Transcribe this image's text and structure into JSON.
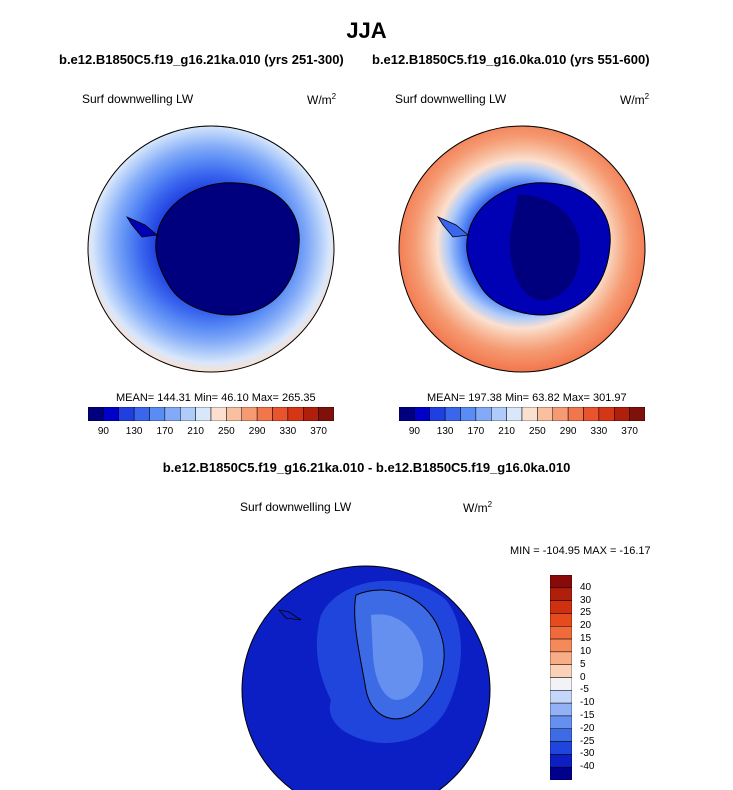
{
  "title": "JJA",
  "colorbar_top": [
    "#00007f",
    "#0000c8",
    "#1f3fe0",
    "#3a66ee",
    "#5a8cf5",
    "#82aaf8",
    "#aecbfa",
    "#d9e7fb",
    "#fbe0d0",
    "#f8bfa0",
    "#f59a72",
    "#f2764c",
    "#e9532d",
    "#d43616",
    "#b01f0b",
    "#80100a"
  ],
  "colorbar_bottom": [
    "#00007f",
    "#0000c8",
    "#1f3fe0",
    "#3a66ee",
    "#5a8cf5",
    "#82aaf8",
    "#aecbfa",
    "#d9e7fb",
    "#fbe0d0",
    "#f8bfa0",
    "#f59a72",
    "#f2764c",
    "#e9532d",
    "#d43616",
    "#b01f0b",
    "#80100a"
  ],
  "panels": [
    {
      "case": "b.e12.B1850C5.f19_g16.21ka.010 (yrs 251-300)",
      "variable": "Surf downwelling LW",
      "units": "W/m",
      "units_sup": "2",
      "stats": "MEAN= 144.31  Min=  46.10  Max= 265.35",
      "colorbar_ticks": [
        "90",
        "130",
        "170",
        "210",
        "250",
        "290",
        "330",
        "370"
      ]
    },
    {
      "case": "b.e12.B1850C5.f19_g16.0ka.010 (yrs 551-600)",
      "variable": "Surf downwelling LW",
      "units": "W/m",
      "units_sup": "2",
      "stats": "MEAN= 197.38  Min=  63.82  Max= 301.97",
      "colorbar_ticks": [
        "90",
        "130",
        "170",
        "210",
        "250",
        "290",
        "330",
        "370"
      ]
    }
  ],
  "difference": {
    "title": "b.e12.B1850C5.f19_g16.21ka.010 - b.e12.B1850C5.f19_g16.0ka.010",
    "variable": "Surf downwelling LW",
    "units": "W/m",
    "units_sup": "2",
    "stats": "MIN = -104.95 MAX = -16.17",
    "colorbar_labels": [
      "40",
      "30",
      "25",
      "20",
      "15",
      "10",
      "5",
      "0",
      "-5",
      "-10",
      "-15",
      "-20",
      "-25",
      "-30",
      "-40"
    ],
    "colorbar": [
      "#8a0a0a",
      "#b01f0b",
      "#d03010",
      "#e64b1e",
      "#f06a3c",
      "#f48a5a",
      "#f8ad86",
      "#fbd2b8",
      "#f3f3f7",
      "#c4d6fa",
      "#93b2f6",
      "#6690f0",
      "#3d6be6",
      "#1f45dc",
      "#0b1fc4",
      "#00008c"
    ]
  }
}
